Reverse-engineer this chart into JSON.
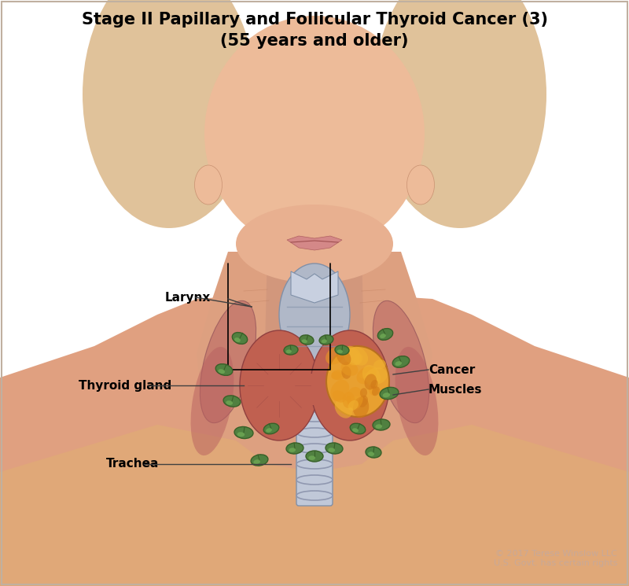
{
  "title_line1": "Stage II Papillary and Follicular Thyroid Cancer (3)",
  "title_line2": "(55 years and older)",
  "title_fontsize": 15,
  "title_bold": true,
  "bg_color": "#FFFFFF",
  "copyright": "© 2017 Terese Winslow LLC\nU.S. Govt. has certain rights",
  "copyright_color": "#C8A898",
  "labels": {
    "larynx": "Larynx",
    "thyroid_gland": "Thyroid gland",
    "trachea": "Trachea",
    "cancer": "Cancer",
    "muscles": "Muscles"
  },
  "skin_color": "#E8B090",
  "skin_light": "#F5D0B8",
  "skin_neck": "#DDA080",
  "thyroid_color": "#C06050",
  "thyroid_dark": "#A04040",
  "larynx_color": "#B0B8C8",
  "trachea_color": "#C0C8D8",
  "cancer_color": "#E8A030",
  "cancer_dark": "#C88020",
  "lymph_color": "#508040",
  "lymph_dark": "#386028",
  "muscle_color": "#D08878",
  "box_color": "#000000",
  "line_color": "#404040",
  "label_fontsize": 11
}
